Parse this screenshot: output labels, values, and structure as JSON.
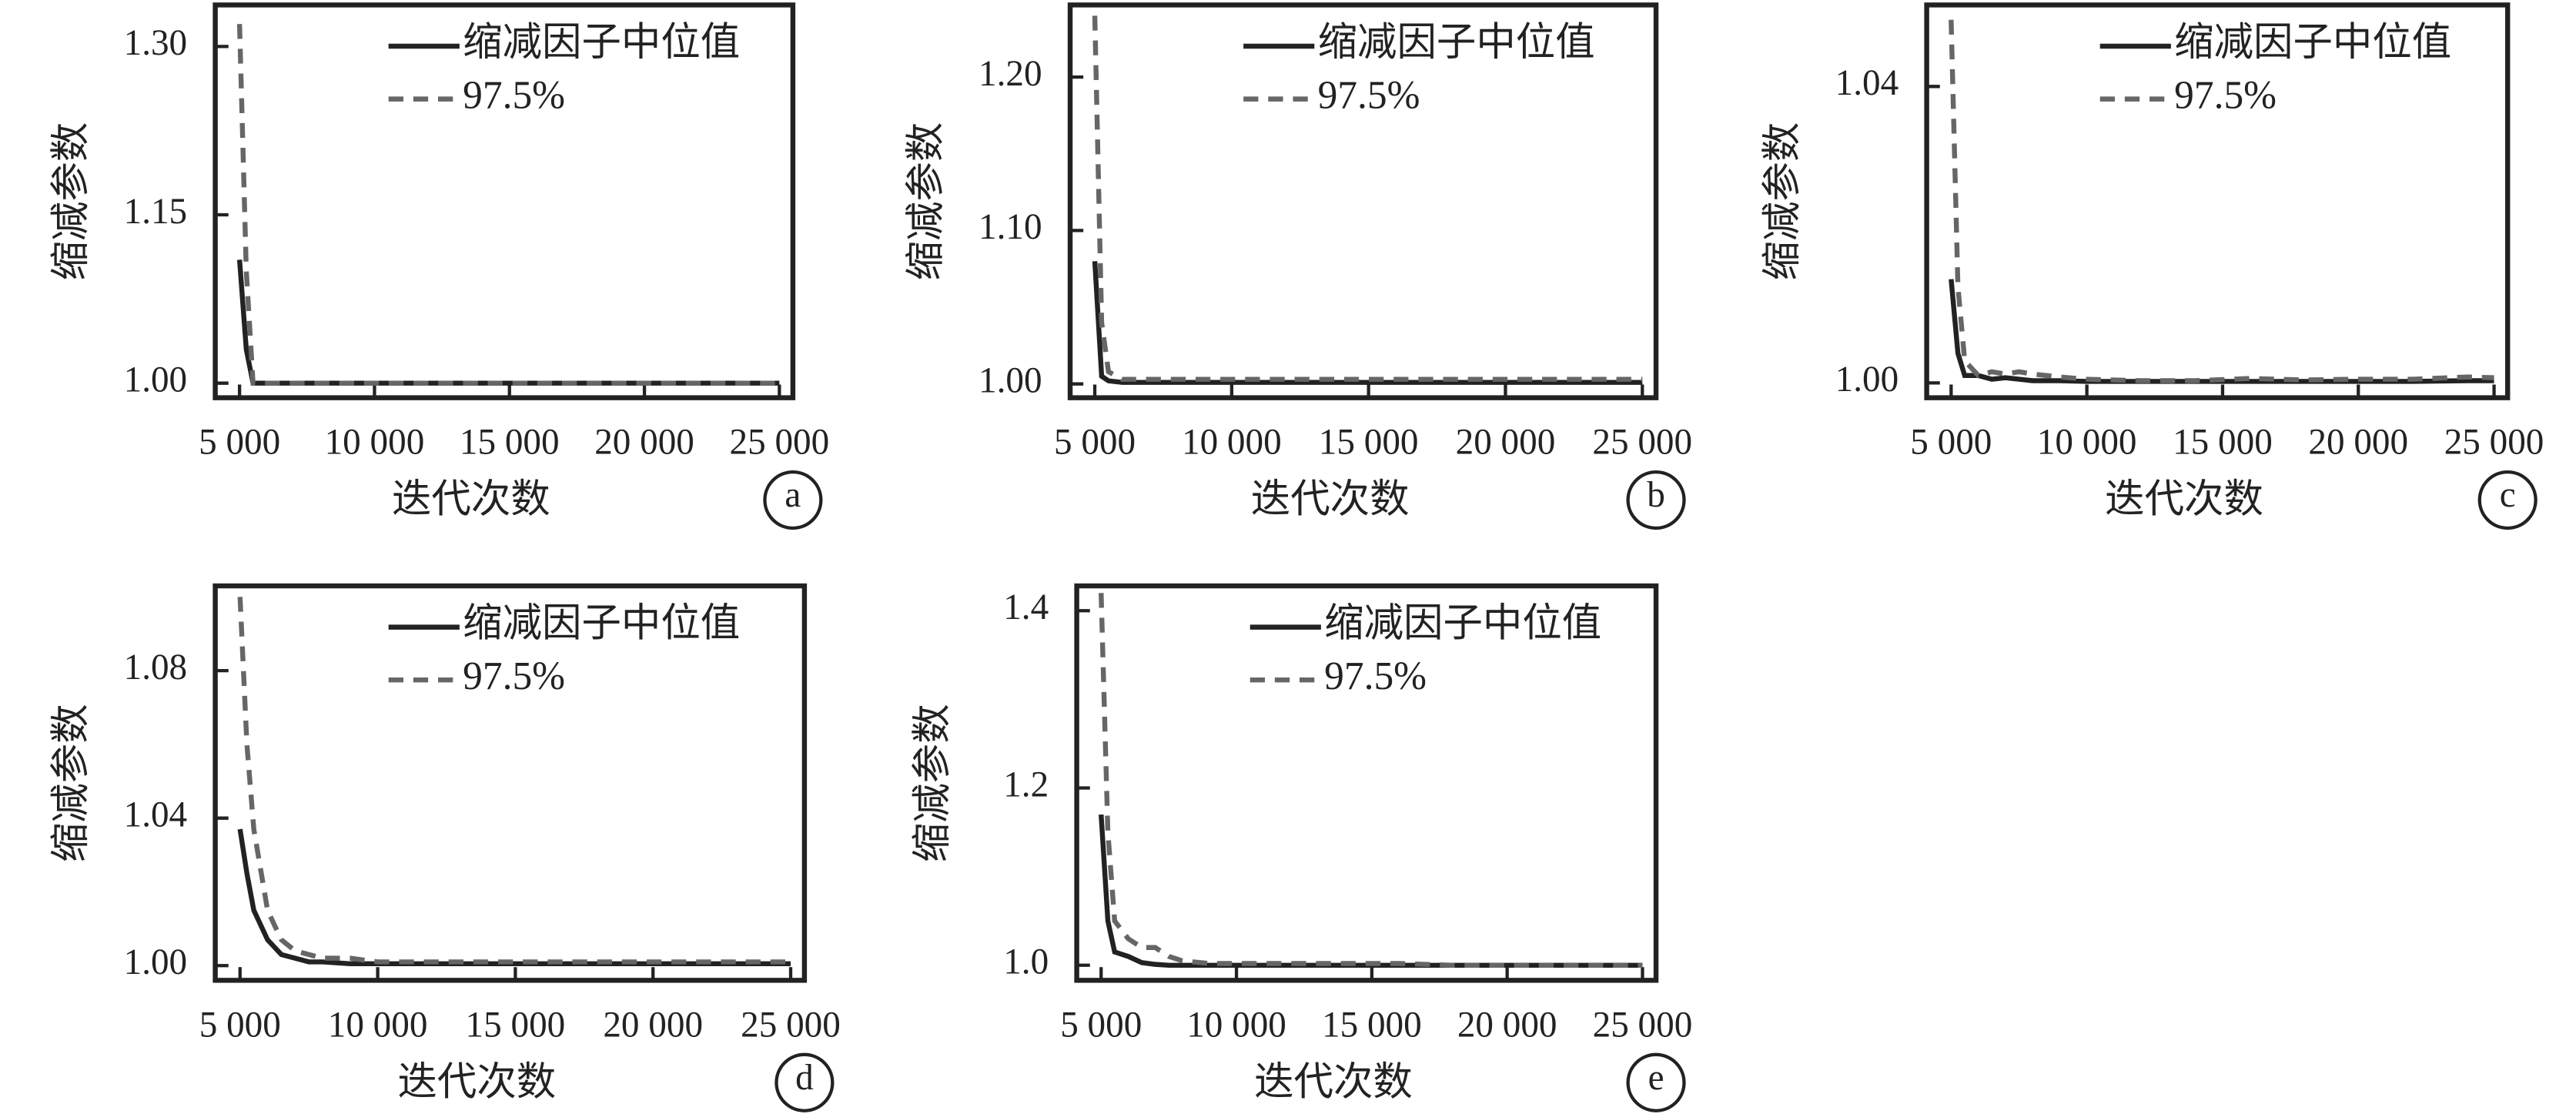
{
  "chart_data": [
    {
      "type": "line",
      "panel_label": "a",
      "x_label": "迭代次数",
      "y_label": "缩减参数",
      "x": [
        5000,
        5250,
        5500,
        6000,
        6500,
        7000,
        7500,
        8000,
        9000,
        10000,
        12000,
        14000,
        16000,
        18000,
        20000,
        22000,
        24000,
        25000
      ],
      "series": [
        {
          "name": "缩减因子中位值",
          "color": "#222222",
          "dashed": false,
          "values": [
            1.11,
            1.03,
            1.0,
            1.0,
            1.0,
            1.0,
            1.0,
            1.0,
            1.0,
            1.0,
            1.0,
            1.0,
            1.0,
            1.0,
            1.0,
            1.0,
            1.0,
            1.0
          ]
        },
        {
          "name": "97.5%",
          "color": "#666666",
          "dashed": true,
          "values": [
            1.32,
            1.1,
            1.0,
            1.0,
            1.0,
            1.0,
            1.0,
            1.0,
            1.0,
            1.0,
            1.0,
            1.0,
            1.0,
            1.0,
            1.0,
            1.0,
            1.0,
            1.0
          ]
        }
      ],
      "xlim": [
        4100,
        25500
      ],
      "ylim": [
        0.987,
        1.337
      ],
      "xticks": [
        {
          "value": 5000,
          "label": "5 000"
        },
        {
          "value": 10000,
          "label": "10 000"
        },
        {
          "value": 15000,
          "label": "15 000"
        },
        {
          "value": 20000,
          "label": "20 000"
        },
        {
          "value": 25000,
          "label": "25 000"
        }
      ],
      "yticks": [
        {
          "value": 1,
          "label": "1.00"
        },
        1.15,
        {
          "value": 1.3,
          "label": "1.30"
        }
      ]
    },
    {
      "type": "line",
      "panel_label": "b",
      "x_label": "迭代次数",
      "y_label": "缩减参数",
      "x": [
        5000,
        5250,
        5500,
        6000,
        6500,
        7000,
        7500,
        8000,
        9000,
        10000,
        12000,
        14000,
        16000,
        18000,
        20000,
        22000,
        24000,
        25000
      ],
      "series": [
        {
          "name": "缩减因子中位值",
          "color": "#222222",
          "dashed": false,
          "values": [
            1.08,
            1.005,
            1.002,
            1.001,
            1.001,
            1.001,
            1.001,
            1.001,
            1.001,
            1.001,
            1.001,
            1.001,
            1.001,
            1.001,
            1.001,
            1.001,
            1.001,
            1.001
          ]
        },
        {
          "name": "97.5%",
          "color": "#666666",
          "dashed": true,
          "values": [
            1.24,
            1.04,
            1.008,
            1.003,
            1.003,
            1.003,
            1.003,
            1.003,
            1.003,
            1.003,
            1.003,
            1.003,
            1.003,
            1.003,
            1.003,
            1.003,
            1.003,
            1.003
          ]
        }
      ],
      "xlim": [
        4100,
        25500
      ],
      "ylim": [
        0.991,
        1.247
      ],
      "xticks": [
        {
          "value": 5000,
          "label": "5 000"
        },
        {
          "value": 10000,
          "label": "10 000"
        },
        {
          "value": 15000,
          "label": "15 000"
        },
        {
          "value": 20000,
          "label": "20 000"
        },
        {
          "value": 25000,
          "label": "25 000"
        }
      ],
      "yticks": [
        {
          "value": 1,
          "label": "1.00"
        },
        {
          "value": 1.1,
          "label": "1.10"
        },
        {
          "value": 1.2,
          "label": "1.20"
        }
      ]
    },
    {
      "type": "line",
      "panel_label": "c",
      "x_label": "迭代次数",
      "y_label": "缩减参数",
      "x": [
        5000,
        5250,
        5500,
        6000,
        6500,
        7000,
        7500,
        8000,
        9000,
        10000,
        12000,
        14000,
        16000,
        18000,
        20000,
        22000,
        24000,
        25000
      ],
      "series": [
        {
          "name": "缩减因子中位值",
          "color": "#222222",
          "dashed": false,
          "values": [
            1.014,
            1.004,
            1.001,
            1.001,
            1.0005,
            1.0007,
            1.0005,
            1.0003,
            1.0003,
            1.0002,
            1.0002,
            1.0002,
            1.0002,
            1.0002,
            1.0002,
            1.0002,
            1.0003,
            1.0003
          ]
        },
        {
          "name": "97.5%",
          "color": "#666666",
          "dashed": true,
          "values": [
            1.049,
            1.013,
            1.003,
            1.001,
            1.0015,
            1.0012,
            1.0015,
            1.0012,
            1.0008,
            1.0005,
            1.0003,
            1.0003,
            1.0006,
            1.0004,
            1.0005,
            1.0005,
            1.0008,
            1.0007
          ]
        }
      ],
      "xlim": [
        4100,
        25500
      ],
      "ylim": [
        0.998,
        1.051
      ],
      "xticks": [
        {
          "value": 5000,
          "label": "5 000"
        },
        {
          "value": 10000,
          "label": "10 000"
        },
        {
          "value": 15000,
          "label": "15 000"
        },
        {
          "value": 20000,
          "label": "20 000"
        },
        {
          "value": 25000,
          "label": "25 000"
        }
      ],
      "yticks": [
        {
          "value": 1,
          "label": "1.00"
        },
        1.04
      ]
    },
    {
      "type": "line",
      "panel_label": "d",
      "x_label": "迭代次数",
      "y_label": "缩减参数",
      "x": [
        5000,
        5250,
        5500,
        6000,
        6500,
        7000,
        7500,
        8000,
        9000,
        10000,
        12000,
        14000,
        16000,
        18000,
        20000,
        22000,
        24000,
        25000
      ],
      "series": [
        {
          "name": "缩减因子中位值",
          "color": "#222222",
          "dashed": false,
          "values": [
            1.037,
            1.025,
            1.015,
            1.007,
            1.003,
            1.002,
            1.001,
            1.001,
            1.0005,
            1.0005,
            1.0005,
            1.0005,
            1.0005,
            1.0005,
            1.0005,
            1.0005,
            1.0005,
            1.0005
          ]
        },
        {
          "name": "97.5%",
          "color": "#666666",
          "dashed": true,
          "values": [
            1.1,
            1.06,
            1.037,
            1.015,
            1.007,
            1.004,
            1.003,
            1.002,
            1.002,
            1.001,
            1.001,
            1.001,
            1.001,
            1.001,
            1.001,
            1.001,
            1.001,
            1.001
          ]
        }
      ],
      "xlim": [
        4100,
        25500
      ],
      "ylim": [
        0.996,
        1.103
      ],
      "xticks": [
        {
          "value": 5000,
          "label": "5 000"
        },
        {
          "value": 10000,
          "label": "10 000"
        },
        {
          "value": 15000,
          "label": "15 000"
        },
        {
          "value": 20000,
          "label": "20 000"
        },
        {
          "value": 25000,
          "label": "25 000"
        }
      ],
      "yticks": [
        {
          "value": 1,
          "label": "1.00"
        },
        1.04,
        1.08
      ]
    },
    {
      "type": "line",
      "panel_label": "e",
      "x_label": "迭代次数",
      "y_label": "缩减参数",
      "x": [
        5000,
        5250,
        5500,
        6000,
        6500,
        7000,
        7500,
        8000,
        9000,
        10000,
        12000,
        14000,
        16000,
        18000,
        20000,
        22000,
        24000,
        25000
      ],
      "series": [
        {
          "name": "缩减因子中位值",
          "color": "#222222",
          "dashed": false,
          "values": [
            1.17,
            1.05,
            1.015,
            1.01,
            1.003,
            1.001,
            1.0,
            1.0,
            1.0,
            1.0,
            1.0,
            1.0,
            1.0,
            1.0,
            1.0,
            1.0,
            1.0,
            1.0
          ]
        },
        {
          "name": "97.5%",
          "color": "#666666",
          "dashed": true,
          "values": [
            1.42,
            1.15,
            1.05,
            1.03,
            1.02,
            1.02,
            1.01,
            1.005,
            1.002,
            1.002,
            1.002,
            1.002,
            1.002,
            1.0,
            1.0,
            1.0,
            1.0,
            1.0
          ]
        }
      ],
      "xlim": [
        4100,
        25500
      ],
      "ylim": [
        0.983,
        1.428
      ],
      "xticks": [
        {
          "value": 5000,
          "label": "5 000"
        },
        {
          "value": 10000,
          "label": "10 000"
        },
        {
          "value": 15000,
          "label": "15 000"
        },
        {
          "value": 20000,
          "label": "20 000"
        },
        {
          "value": 25000,
          "label": "25 000"
        }
      ],
      "yticks": [
        {
          "value": 1,
          "label": "1.0"
        },
        1.2,
        1.4
      ]
    }
  ]
}
